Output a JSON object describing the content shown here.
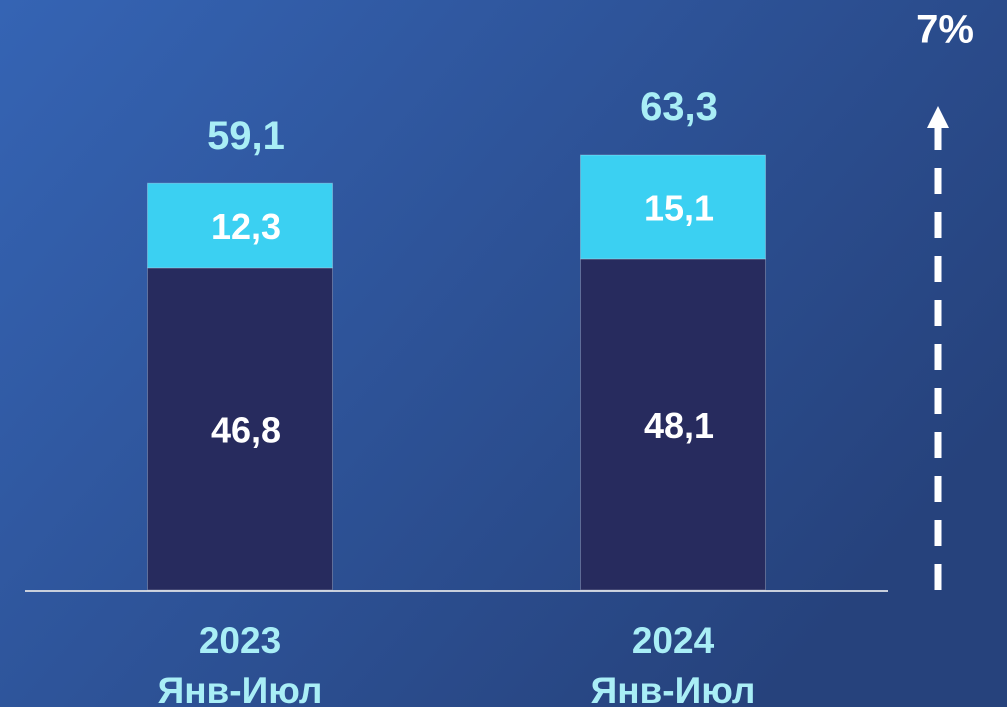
{
  "chart_data": {
    "type": "stacked_bar",
    "categories": [
      [
        "2023",
        "Янв-Июл"
      ],
      [
        "2024",
        "Янв-Июл"
      ]
    ],
    "series": [
      {
        "color": "#272b5e",
        "values": [
          46.8,
          48.1
        ],
        "value_labels": [
          "46,8",
          "48,1"
        ]
      },
      {
        "color": "#3bd0f2",
        "values": [
          12.3,
          15.1
        ],
        "value_labels": [
          "12,3",
          "15,1"
        ]
      }
    ],
    "totals": {
      "values": [
        59.1,
        63.3
      ],
      "value_labels": [
        "59,1",
        "63,3"
      ]
    },
    "annotation": "7%"
  }
}
